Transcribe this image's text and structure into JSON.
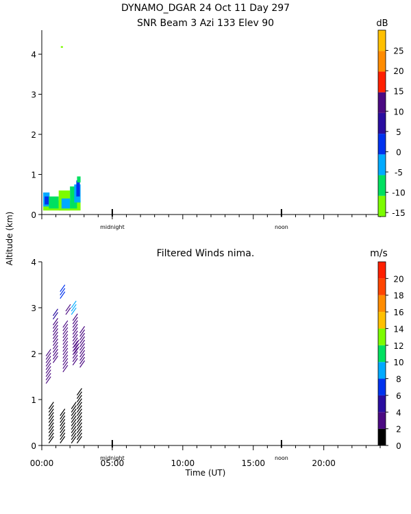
{
  "title": {
    "line1": "DYNAMO_DGAR  24 Oct 11 Day 297",
    "line2": "SNR Beam 3 Azi 133 Elev 90"
  },
  "ylabel": "Altitude (km)",
  "chart_data": [
    {
      "type": "heatmap",
      "title": "",
      "ylabel": "Altitude (km)",
      "xlim": [
        0,
        24
      ],
      "ylim": [
        0,
        4.6
      ],
      "ytick_labels": [
        "0",
        "1",
        "2",
        "3",
        "4"
      ],
      "x_markers": [
        {
          "label": "midnight",
          "x": 5
        },
        {
          "label": "noon",
          "x": 17
        }
      ],
      "colorbar": {
        "unit": "dB",
        "range": [
          -16,
          30
        ],
        "tick_labels": [
          "-15",
          "-10",
          "-5",
          "0",
          "5",
          "10",
          "15",
          "20",
          "25"
        ],
        "colors": [
          "#7CFC00",
          "#00E060",
          "#00AAFF",
          "#0033EE",
          "#2A0EA0",
          "#4B0A82",
          "#FF2000",
          "#FF8C00",
          "#FFC000"
        ]
      },
      "cells": [
        {
          "x0": 0.1,
          "x1": 2.75,
          "y0": 0.1,
          "y1": 0.35,
          "color": "#7CFC00"
        },
        {
          "x0": 0.1,
          "x1": 0.55,
          "y0": 0.2,
          "y1": 0.55,
          "color": "#00AAFF"
        },
        {
          "x0": 0.2,
          "x1": 0.5,
          "y0": 0.25,
          "y1": 0.45,
          "color": "#0033EE"
        },
        {
          "x0": 0.5,
          "x1": 1.2,
          "y0": 0.15,
          "y1": 0.45,
          "color": "#00E060"
        },
        {
          "x0": 1.2,
          "x1": 2.0,
          "y0": 0.1,
          "y1": 0.6,
          "color": "#7CFC00"
        },
        {
          "x0": 1.4,
          "x1": 2.0,
          "y0": 0.15,
          "y1": 0.4,
          "color": "#00AAFF"
        },
        {
          "x0": 2.0,
          "x1": 2.5,
          "y0": 0.15,
          "y1": 0.7,
          "color": "#00E060"
        },
        {
          "x0": 2.3,
          "x1": 2.75,
          "y0": 0.3,
          "y1": 0.75,
          "color": "#00AAFF"
        },
        {
          "x0": 2.45,
          "x1": 2.7,
          "y0": 0.45,
          "y1": 0.85,
          "color": "#0033EE"
        },
        {
          "x0": 2.5,
          "x1": 2.75,
          "y0": 0.8,
          "y1": 0.95,
          "color": "#00E060"
        },
        {
          "x0": 1.35,
          "x1": 1.5,
          "y0": 4.16,
          "y1": 4.2,
          "color": "#7CFC00"
        }
      ]
    },
    {
      "type": "scatter",
      "title": "Filtered Winds nima.",
      "xlabel": "Time (UT)",
      "ylabel": "Altitude (km)",
      "xlim": [
        0,
        24
      ],
      "ylim": [
        0,
        4
      ],
      "xtick_labels": [
        "00:00",
        "05:00",
        "10:00",
        "15:00",
        "20:00"
      ],
      "ytick_labels": [
        "0",
        "1",
        "2",
        "3",
        "4"
      ],
      "x_markers": [
        {
          "label": "midnight",
          "x": 5
        },
        {
          "label": "noon",
          "x": 17
        }
      ],
      "colorbar": {
        "unit": "m/s",
        "range": [
          0,
          22
        ],
        "tick_labels": [
          "0",
          "2",
          "4",
          "6",
          "8",
          "10",
          "12",
          "14",
          "16",
          "18",
          "20"
        ],
        "colors": [
          "#000000",
          "#4B0A82",
          "#2A0EA0",
          "#0033EE",
          "#00AAFF",
          "#00E060",
          "#7CFC00",
          "#FFC000",
          "#FF8C00",
          "#FF4500",
          "#FF2000"
        ]
      },
      "wind_profiles": [
        {
          "x": 0.5,
          "y_from": 0.05,
          "y_to": 0.8,
          "speed": 1
        },
        {
          "x": 1.3,
          "y_from": 0.05,
          "y_to": 0.65,
          "speed": 1
        },
        {
          "x": 2.1,
          "y_from": 0.05,
          "y_to": 0.8,
          "speed": 1
        },
        {
          "x": 2.5,
          "y_from": 0.05,
          "y_to": 1.1,
          "speed": 1
        },
        {
          "x": 0.3,
          "y_from": 1.35,
          "y_to": 2.0,
          "speed": 3
        },
        {
          "x": 0.8,
          "y_from": 1.8,
          "y_to": 2.65,
          "speed": 3
        },
        {
          "x": 1.5,
          "y_from": 1.6,
          "y_to": 2.6,
          "speed": 3
        },
        {
          "x": 2.2,
          "y_from": 1.75,
          "y_to": 2.75,
          "speed": 3
        },
        {
          "x": 2.7,
          "y_from": 1.7,
          "y_to": 2.5,
          "speed": 3
        },
        {
          "x": 0.8,
          "y_from": 2.75,
          "y_to": 2.85,
          "speed": 4
        },
        {
          "x": 1.7,
          "y_from": 2.85,
          "y_to": 2.95,
          "speed": 3
        },
        {
          "x": 2.3,
          "y_from": 2.0,
          "y_to": 2.15,
          "speed": 3
        },
        {
          "x": 1.3,
          "y_from": 3.2,
          "y_to": 3.42,
          "speed": 7
        },
        {
          "x": 2.1,
          "y_from": 2.85,
          "y_to": 3.0,
          "speed": 9
        }
      ]
    }
  ]
}
